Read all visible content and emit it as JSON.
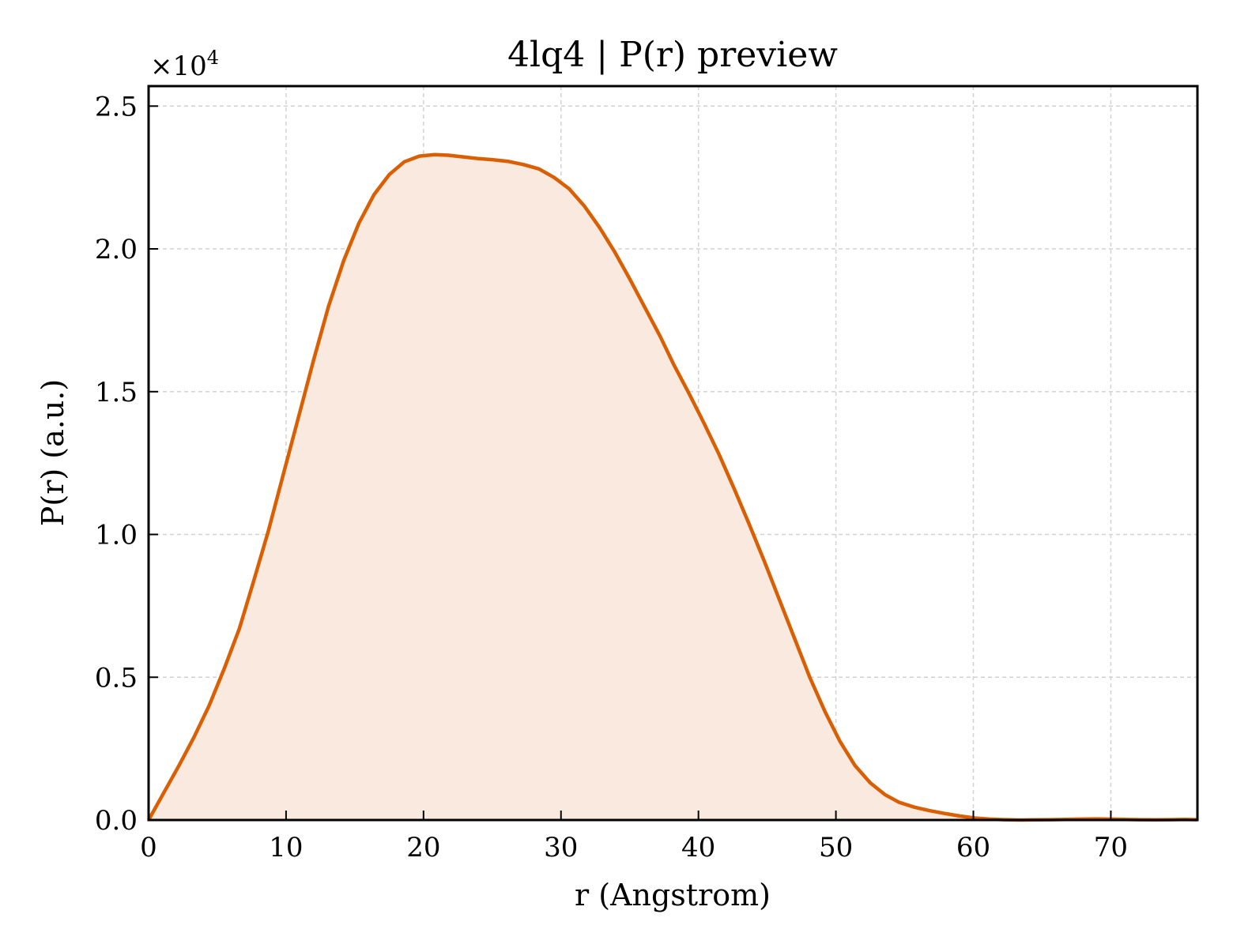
{
  "chart_data": {
    "type": "area",
    "title": "4lq4 | P(r) preview",
    "xlabel": "r (Angstrom)",
    "ylabel": "P(r) (a.u.)",
    "y_multiplier_text": "×10",
    "y_multiplier_exponent": "4",
    "xlim": [
      0,
      76.3
    ],
    "ylim": [
      0,
      2.57
    ],
    "x_ticks": [
      0,
      10,
      20,
      30,
      40,
      50,
      60,
      70
    ],
    "x_tick_labels": [
      "0",
      "10",
      "20",
      "30",
      "40",
      "50",
      "60",
      "70"
    ],
    "y_ticks": [
      0,
      0.5,
      1.0,
      1.5,
      2.0,
      2.5
    ],
    "y_tick_labels": [
      "0.0",
      "0.5",
      "1.0",
      "1.5",
      "2.0",
      "2.5"
    ],
    "grid": true,
    "line_color": "#d95f02",
    "fill_color": "#f9e9de",
    "series": [
      {
        "x": [
          0,
          1.1,
          2.2,
          3.3,
          4.4,
          5.5,
          6.6,
          7.6,
          8.7,
          9.8,
          10.9,
          12.0,
          13.1,
          14.2,
          15.3,
          16.4,
          17.5,
          18.6,
          19.7,
          20.8,
          21.8,
          22.9,
          24.0,
          25.1,
          26.2,
          27.3,
          28.4,
          29.5,
          30.6,
          31.7,
          32.8,
          33.9,
          35.0,
          36.1,
          37.2,
          38.2,
          39.3,
          40.4,
          41.5,
          42.6,
          43.7,
          44.8,
          45.9,
          47.0,
          48.1,
          49.2,
          50.3,
          51.4,
          52.5,
          53.6,
          54.6,
          55.7,
          56.8,
          57.9,
          59.0,
          60.1,
          61.2,
          62.3,
          63.4,
          64.5,
          65.6,
          66.7,
          67.8,
          68.9,
          70.0,
          71.0,
          72.1,
          73.2,
          74.3,
          75.4,
          76.3
        ],
        "values": [
          0,
          0.095,
          0.19,
          0.29,
          0.4,
          0.53,
          0.67,
          0.83,
          1.01,
          1.21,
          1.41,
          1.61,
          1.8,
          1.96,
          2.09,
          2.19,
          2.26,
          2.305,
          2.325,
          2.33,
          2.328,
          2.322,
          2.316,
          2.312,
          2.306,
          2.295,
          2.28,
          2.25,
          2.21,
          2.15,
          2.075,
          1.99,
          1.895,
          1.795,
          1.695,
          1.595,
          1.495,
          1.39,
          1.28,
          1.16,
          1.035,
          0.905,
          0.77,
          0.635,
          0.5,
          0.38,
          0.275,
          0.19,
          0.13,
          0.088,
          0.062,
          0.045,
          0.033,
          0.023,
          0.014,
          0.007,
          0.003,
          0.001,
          0,
          0.0005,
          0.001,
          0.002,
          0.003,
          0.004,
          0.003,
          0.002,
          0.001,
          0.0005,
          0.001,
          0.002,
          0.001
        ]
      }
    ]
  }
}
